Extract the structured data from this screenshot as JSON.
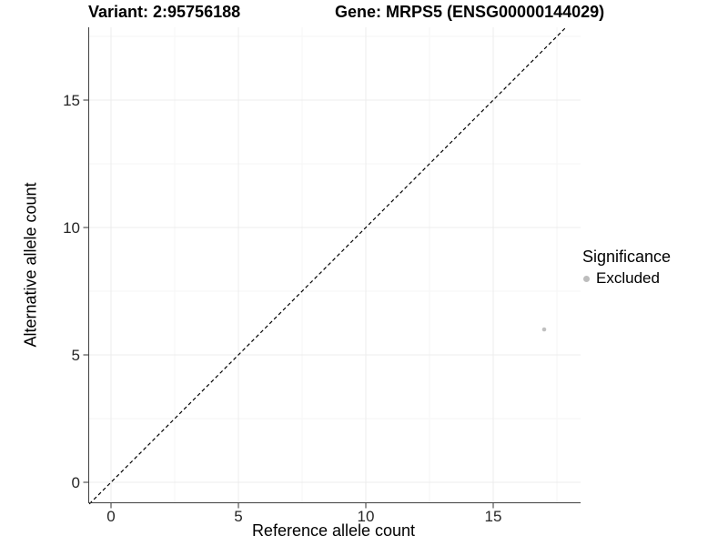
{
  "header": {
    "title_left": "Variant: 2:95756188",
    "title_right": "Gene: MRPS5 (ENSG00000144029)"
  },
  "legend": {
    "title": "Significance",
    "items": [
      {
        "label": "Excluded",
        "color": "#bdbdbd"
      }
    ]
  },
  "chart_data": {
    "type": "scatter",
    "title_left": "Variant: 2:95756188",
    "title_right": "Gene: MRPS5 (ENSG00000144029)",
    "xlabel": "Reference allele count",
    "ylabel": "Alternative allele count",
    "xlim": [
      -0.88,
      18.43
    ],
    "ylim": [
      -0.85,
      17.85
    ],
    "x_ticks": [
      0,
      5,
      10,
      15
    ],
    "y_ticks": [
      0,
      5,
      10,
      15
    ],
    "minor_tick_step": 2.5,
    "grid": "major and minor gridlines, very light gray on white",
    "legend_position": "right",
    "series": [
      {
        "name": "Excluded",
        "color": "#bdbdbd",
        "marker": "circle",
        "points": [
          {
            "x": 17,
            "y": 6
          }
        ]
      }
    ],
    "reference_line": {
      "kind": "identity",
      "equation": "y = x",
      "style": "dashed",
      "color": "#000000"
    }
  },
  "colors": {
    "background": "#ffffff",
    "grid_major": "#ececec",
    "grid_minor": "#f5f5f5",
    "axis_line": "#404040",
    "tick_mark": "#333333",
    "tick_text": "#262626",
    "point": "#c0c0c0",
    "dashed_line": "#000000"
  }
}
